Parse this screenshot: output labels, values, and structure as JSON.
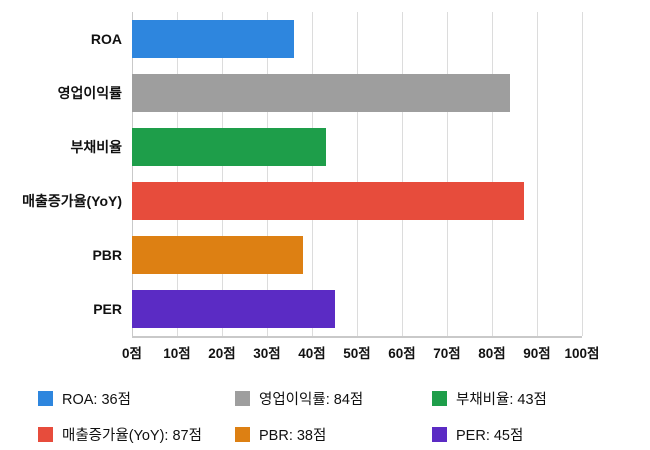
{
  "chart_data": {
    "type": "bar",
    "orientation": "horizontal",
    "title": "",
    "categories": [
      "ROA",
      "영업이익률",
      "부채비율",
      "매출증가율(YoY)",
      "PBR",
      "PER"
    ],
    "values": [
      36,
      84,
      43,
      87,
      38,
      45
    ],
    "colors": [
      "#2E86DE",
      "#9E9E9E",
      "#1E9E4A",
      "#E74C3C",
      "#DD8013",
      "#5B2BC4"
    ],
    "unit": "점",
    "xlim": [
      0,
      100
    ],
    "xtick_labels": [
      "0점",
      "10점",
      "20점",
      "30점",
      "40점",
      "50점",
      "60점",
      "70점",
      "80점",
      "90점",
      "100점"
    ],
    "grid": true,
    "legend_position": "bottom",
    "legend": [
      {
        "label": "ROA: 36점",
        "color": "#2E86DE"
      },
      {
        "label": "영업이익률: 84점",
        "color": "#9E9E9E"
      },
      {
        "label": "부채비율: 43점",
        "color": "#1E9E4A"
      },
      {
        "label": "매출증가율(YoY): 87점",
        "color": "#E74C3C"
      },
      {
        "label": "PBR: 38점",
        "color": "#DD8013"
      },
      {
        "label": "PER: 45점",
        "color": "#5B2BC4"
      }
    ]
  }
}
